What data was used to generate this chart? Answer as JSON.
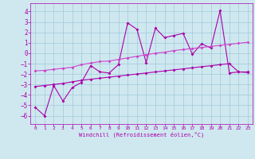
{
  "xlabel": "Windchill (Refroidissement éolien,°C)",
  "bg_color": "#cfe8f0",
  "grid_color": "#a0c8d8",
  "line_color": "#aa00aa",
  "line_color2": "#cc44cc",
  "xlim": [
    -0.5,
    23.5
  ],
  "ylim": [
    -6.8,
    4.8
  ],
  "xticks": [
    0,
    1,
    2,
    3,
    4,
    5,
    6,
    7,
    8,
    9,
    10,
    11,
    12,
    13,
    14,
    15,
    16,
    17,
    18,
    19,
    20,
    21,
    22,
    23
  ],
  "yticks": [
    -6,
    -5,
    -4,
    -3,
    -2,
    -1,
    0,
    1,
    2,
    3,
    4
  ],
  "main_x": [
    0,
    1,
    2,
    3,
    4,
    5,
    6,
    7,
    8,
    9,
    10,
    11,
    12,
    13,
    14,
    15,
    16,
    17,
    18,
    19,
    20,
    21,
    22,
    23
  ],
  "main_y": [
    -5.2,
    -6.0,
    -3.1,
    -4.6,
    -3.3,
    -2.8,
    -1.2,
    -1.8,
    -1.9,
    -1.1,
    2.9,
    2.3,
    -0.9,
    2.4,
    1.5,
    1.7,
    1.9,
    -0.1,
    0.9,
    0.5,
    4.1,
    -1.9,
    -1.8,
    -1.8
  ],
  "upper_x": [
    0,
    1,
    2,
    3,
    4,
    5,
    6,
    7,
    8,
    9,
    10,
    11,
    12,
    13,
    14,
    15,
    16,
    17,
    18,
    19,
    20,
    21,
    22,
    23
  ],
  "upper_y": [
    -1.7,
    -1.65,
    -1.55,
    -1.45,
    -1.35,
    -1.1,
    -0.95,
    -0.8,
    -0.75,
    -0.6,
    -0.45,
    -0.3,
    -0.15,
    0.0,
    0.1,
    0.25,
    0.35,
    0.45,
    0.55,
    0.65,
    0.75,
    0.85,
    0.95,
    1.05
  ],
  "lower_x": [
    0,
    1,
    2,
    3,
    4,
    5,
    6,
    7,
    8,
    9,
    10,
    11,
    12,
    13,
    14,
    15,
    16,
    17,
    18,
    19,
    20,
    21,
    22,
    23
  ],
  "lower_y": [
    -3.2,
    -3.1,
    -3.0,
    -2.9,
    -2.75,
    -2.6,
    -2.5,
    -2.4,
    -2.3,
    -2.2,
    -2.1,
    -2.0,
    -1.9,
    -1.8,
    -1.7,
    -1.6,
    -1.5,
    -1.4,
    -1.3,
    -1.2,
    -1.1,
    -1.0,
    -1.8,
    -1.85
  ]
}
